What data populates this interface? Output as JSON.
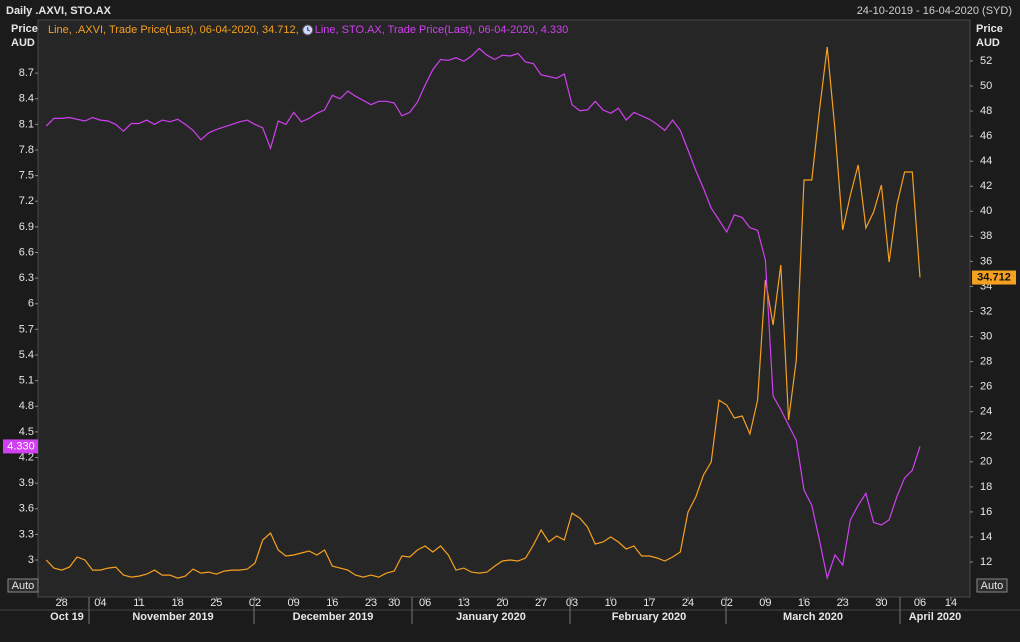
{
  "chart_data": {
    "type": "line",
    "title": "Daily .AXVI, STO.AX",
    "subtitle": "24-10-2019 - 16-04-2020 (SYD)",
    "ylabel_lines": [
      "Price",
      "AUD"
    ],
    "y2label_lines": [
      "Price",
      "AUD"
    ],
    "auto_labels": [
      "Auto",
      "Auto"
    ],
    "x_groups": [
      "Oct 19",
      "November 2019",
      "December 2019",
      "January 2020",
      "February 2020",
      "March 2020",
      "April 2020"
    ],
    "categories": [
      null,
      null,
      "28",
      null,
      null,
      null,
      null,
      "04",
      null,
      null,
      null,
      null,
      "11",
      null,
      null,
      null,
      null,
      "18",
      null,
      null,
      null,
      null,
      "25",
      null,
      null,
      null,
      null,
      "02",
      null,
      null,
      null,
      null,
      "09",
      null,
      null,
      null,
      null,
      "16",
      null,
      null,
      null,
      null,
      "23",
      null,
      null,
      "30",
      null,
      null,
      null,
      "06",
      null,
      null,
      null,
      null,
      "13",
      null,
      null,
      null,
      null,
      "20",
      null,
      null,
      null,
      null,
      "27",
      null,
      null,
      null,
      "03",
      null,
      null,
      null,
      null,
      "10",
      null,
      null,
      null,
      null,
      "17",
      null,
      null,
      null,
      null,
      "24",
      null,
      null,
      null,
      null,
      "02",
      null,
      null,
      null,
      null,
      "09",
      null,
      null,
      null,
      null,
      "16",
      null,
      null,
      null,
      null,
      "23",
      null,
      null,
      null,
      null,
      "30",
      null,
      null,
      null,
      null,
      "06",
      null,
      null,
      null,
      "14"
    ],
    "series": [
      {
        "name": "Line, .AXVI, Trade Price(Last), 06-04-2020, 34.712,",
        "color": "#f5a021",
        "axis": "y2",
        "values": [
          12.16,
          11.52,
          11.36,
          11.6,
          12.4,
          12.16,
          11.36,
          11.36,
          11.52,
          11.6,
          10.96,
          10.8,
          10.88,
          11.04,
          11.36,
          10.96,
          10.96,
          10.72,
          10.88,
          11.44,
          11.12,
          11.2,
          11.04,
          11.28,
          11.36,
          11.36,
          11.44,
          11.92,
          13.76,
          14.32,
          12.96,
          12.48,
          12.56,
          12.72,
          12.88,
          12.56,
          12.96,
          11.68,
          11.52,
          11.36,
          10.96,
          10.8,
          10.96,
          10.8,
          11.12,
          11.28,
          12.48,
          12.4,
          12.96,
          13.28,
          12.8,
          13.28,
          12.56,
          11.36,
          11.52,
          11.2,
          11.12,
          11.2,
          11.68,
          12.08,
          12.16,
          12.08,
          12.32,
          13.36,
          14.56,
          13.6,
          14.08,
          13.76,
          15.91,
          15.51,
          14.8,
          13.44,
          13.6,
          14.0,
          13.6,
          13.04,
          13.28,
          12.48,
          12.48,
          12.32,
          12.08,
          12.4,
          12.8,
          15.99,
          17.19,
          18.95,
          19.98,
          24.93,
          24.54,
          23.5,
          23.66,
          22.22,
          24.93,
          34.52,
          30.92,
          35.71,
          23.34,
          28.13,
          42.5,
          42.5,
          48.09,
          53.12,
          46.49,
          38.51,
          41.3,
          43.7,
          38.67,
          39.94,
          42.1,
          35.95,
          40.5,
          43.14,
          43.14,
          34.712,
          null,
          null,
          null,
          null
        ],
        "value_labels": [
          null,
          null,
          null,
          null,
          null,
          null,
          null,
          null,
          null,
          null,
          null,
          null,
          null,
          null,
          null,
          null,
          null,
          null,
          null,
          null,
          null,
          null,
          null,
          null,
          null,
          null,
          null,
          null,
          null,
          null,
          null,
          null,
          null,
          null,
          null,
          null,
          null,
          null,
          null,
          null,
          null,
          null,
          null,
          null,
          null,
          null,
          null,
          null,
          null,
          null,
          null,
          null,
          null,
          null,
          null,
          null,
          null,
          null,
          null,
          null,
          null,
          null,
          null,
          null,
          null,
          null,
          null,
          null,
          null,
          null,
          null,
          null,
          null,
          null,
          null,
          null,
          null,
          null,
          null,
          null,
          null,
          null,
          null,
          null,
          null,
          null,
          null,
          null,
          null,
          null,
          null,
          null,
          null,
          null,
          null,
          null,
          null,
          null,
          null,
          null,
          null,
          null,
          null,
          null,
          null,
          null,
          null,
          null,
          null,
          null,
          null,
          null,
          null,
          "34.712",
          null,
          null,
          null,
          null
        ]
      },
      {
        "name": "Line, STO.AX, Trade Price(Last), 06-04-2020, 4.330",
        "color": "#d040f0",
        "axis": "y",
        "values": [
          8.08,
          8.17,
          8.17,
          8.18,
          8.16,
          8.14,
          8.18,
          8.15,
          8.14,
          8.1,
          8.02,
          8.11,
          8.11,
          8.15,
          8.1,
          8.15,
          8.13,
          8.16,
          8.1,
          8.03,
          7.92,
          8.0,
          8.04,
          8.07,
          8.1,
          8.13,
          8.15,
          8.1,
          8.06,
          7.82,
          8.14,
          8.1,
          8.24,
          8.13,
          8.17,
          8.23,
          8.27,
          8.44,
          8.4,
          8.49,
          8.43,
          8.38,
          8.33,
          8.37,
          8.37,
          8.35,
          8.2,
          8.24,
          8.36,
          8.56,
          8.74,
          8.86,
          8.85,
          8.88,
          8.84,
          8.9,
          8.99,
          8.91,
          8.86,
          8.91,
          8.9,
          8.93,
          8.83,
          8.81,
          8.68,
          8.66,
          8.64,
          8.69,
          8.33,
          8.26,
          8.27,
          8.37,
          8.27,
          8.23,
          8.29,
          8.15,
          8.24,
          8.2,
          8.16,
          8.1,
          8.03,
          8.15,
          8.03,
          7.8,
          7.56,
          7.35,
          7.12,
          6.98,
          6.84,
          7.04,
          7.01,
          6.89,
          6.86,
          6.51,
          4.92,
          4.76,
          4.58,
          4.4,
          3.82,
          3.64,
          3.23,
          2.79,
          3.06,
          2.94,
          3.47,
          3.64,
          3.78,
          3.44,
          3.41,
          3.47,
          3.74,
          3.96,
          4.05,
          4.33,
          null,
          null,
          null,
          null
        ],
        "value_labels": [
          null,
          null,
          null,
          null,
          null,
          null,
          null,
          null,
          null,
          null,
          null,
          null,
          null,
          null,
          null,
          null,
          null,
          null,
          null,
          null,
          null,
          null,
          null,
          null,
          null,
          null,
          null,
          null,
          null,
          null,
          null,
          null,
          null,
          null,
          null,
          null,
          null,
          null,
          null,
          null,
          null,
          null,
          null,
          null,
          null,
          null,
          null,
          null,
          null,
          null,
          null,
          null,
          null,
          null,
          null,
          null,
          null,
          null,
          null,
          null,
          null,
          null,
          null,
          null,
          null,
          null,
          null,
          null,
          null,
          null,
          null,
          null,
          null,
          null,
          null,
          null,
          null,
          null,
          null,
          null,
          null,
          null,
          null,
          null,
          null,
          null,
          null,
          null,
          null,
          null,
          null,
          null,
          null,
          null,
          null,
          null,
          null,
          null,
          null,
          null,
          null,
          null,
          null,
          null,
          null,
          null,
          null,
          null,
          null,
          null,
          null,
          null,
          null,
          "4.330",
          null,
          null,
          null,
          null
        ]
      }
    ],
    "ylim": [
      2.567,
      9.322
    ],
    "yticks": [
      3,
      3.3,
      3.6,
      3.9,
      4.2,
      4.5,
      4.8,
      5.1,
      5.4,
      5.7,
      6,
      6.3,
      6.6,
      6.9,
      7.2,
      7.5,
      7.8,
      8.1,
      8.4,
      8.7
    ],
    "y2lim": [
      9.21,
      55.27
    ],
    "y2ticks": [
      12,
      14,
      16,
      18,
      20,
      22,
      24,
      26,
      28,
      30,
      32,
      34,
      36,
      38,
      40,
      42,
      44,
      46,
      48,
      50,
      52
    ]
  }
}
